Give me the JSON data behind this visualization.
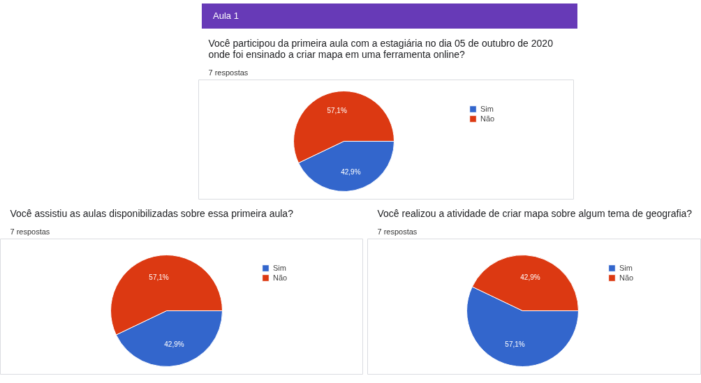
{
  "chart_data": [
    {
      "type": "other",
      "title": "Aula 1"
    },
    {
      "type": "pie",
      "title": "Você participou da primeira aula com a estagiária no dia 05 de outubro de 2020 onde foi ensinado a criar mapa em uma ferramenta online?",
      "subtitle": "7 respostas",
      "categories": [
        "Sim",
        "Não"
      ],
      "values": [
        42.9,
        57.1
      ],
      "colors": [
        "#3366cc",
        "#dc3912"
      ],
      "value_labels": [
        "42,9%",
        "57,1%"
      ],
      "legend": "right"
    },
    {
      "type": "pie",
      "title": "Você assistiu as aulas disponibilizadas sobre essa primeira aula?",
      "subtitle": "7 respostas",
      "categories": [
        "Sim",
        "Não"
      ],
      "values": [
        42.9,
        57.1
      ],
      "colors": [
        "#3366cc",
        "#dc3912"
      ],
      "value_labels": [
        "42,9%",
        "57,1%"
      ],
      "legend": "right"
    },
    {
      "type": "pie",
      "title": "Você realizou a atividade de criar mapa sobre algum tema de geografia?",
      "subtitle": "7 respostas",
      "categories": [
        "Sim",
        "Não"
      ],
      "values": [
        57.1,
        42.9
      ],
      "colors": [
        "#3366cc",
        "#dc3912"
      ],
      "value_labels": [
        "57,1%",
        "42,9%"
      ],
      "legend": "right"
    }
  ]
}
